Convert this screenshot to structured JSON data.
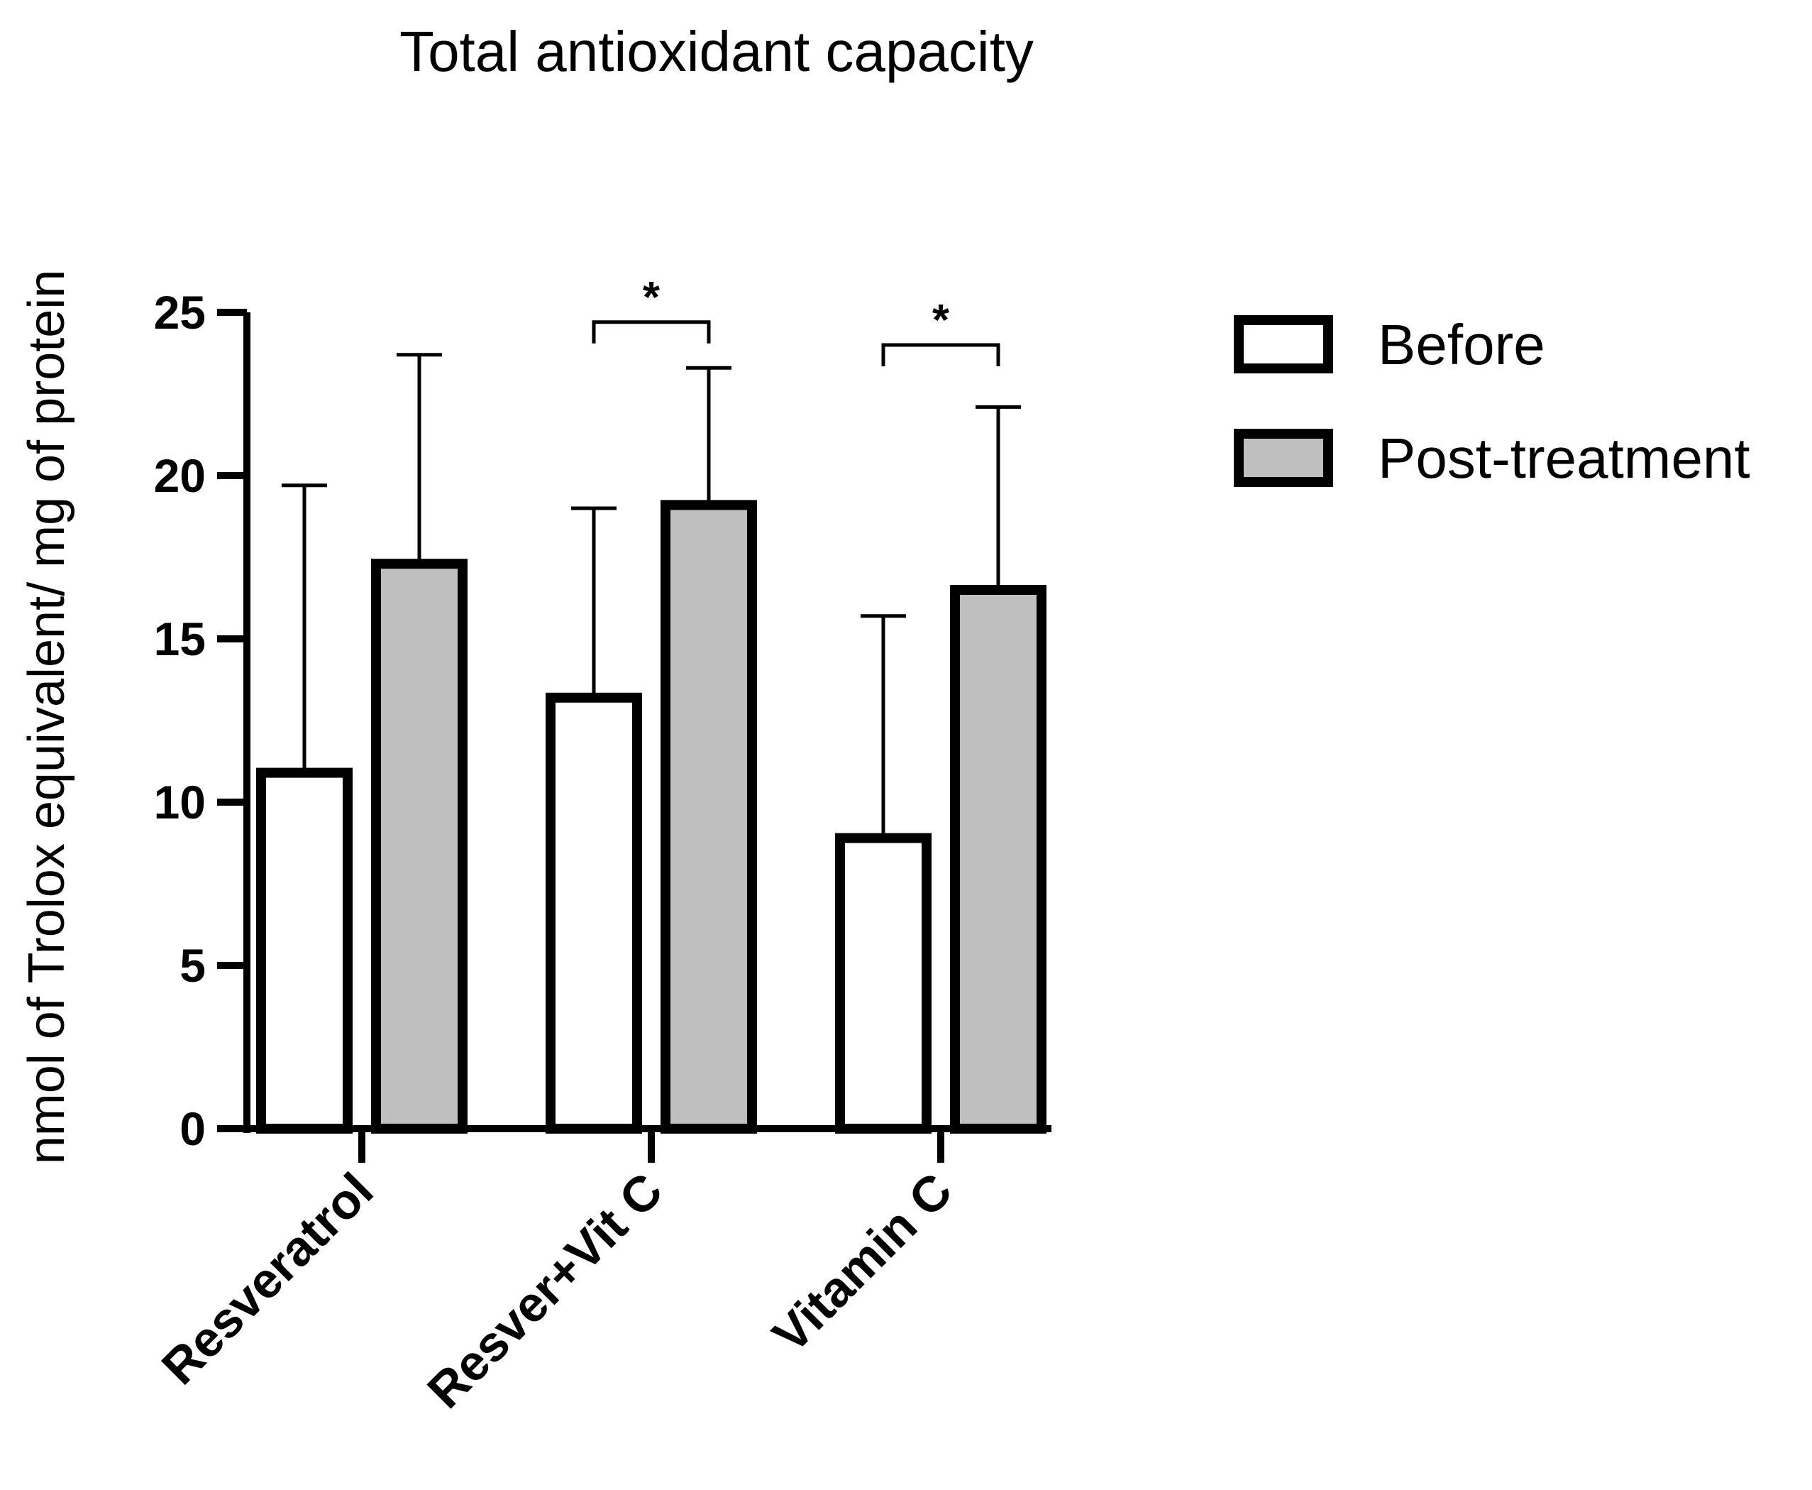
{
  "chart_data": {
    "type": "bar",
    "title": "Total antioxidant capacity",
    "xlabel": "",
    "ylabel": "nmol of Trolox equivalent/ mg of protein",
    "ylim": [
      0,
      25
    ],
    "yticks": [
      0,
      5,
      10,
      15,
      20,
      25
    ],
    "ytick_labels": [
      "0",
      "5",
      "10",
      "15",
      "20",
      "25"
    ],
    "categories": [
      "Resveratrol",
      "Resver+Vit C",
      "Vitamin C"
    ],
    "series": [
      {
        "name": "Before",
        "color": "#ffffff",
        "values": [
          10.9,
          13.2,
          8.9
        ],
        "error_upper": [
          19.7,
          19.0,
          15.7
        ]
      },
      {
        "name": "Post-treatment",
        "color": "#bfbfbf",
        "values": [
          17.3,
          19.1,
          16.5
        ],
        "error_upper": [
          23.7,
          23.3,
          22.1
        ]
      }
    ],
    "significance": [
      {
        "category_index": 1,
        "label": "*",
        "y": 24.7
      },
      {
        "category_index": 2,
        "label": "*",
        "y": 24.0
      }
    ],
    "legend_position": "right",
    "grid": false
  }
}
